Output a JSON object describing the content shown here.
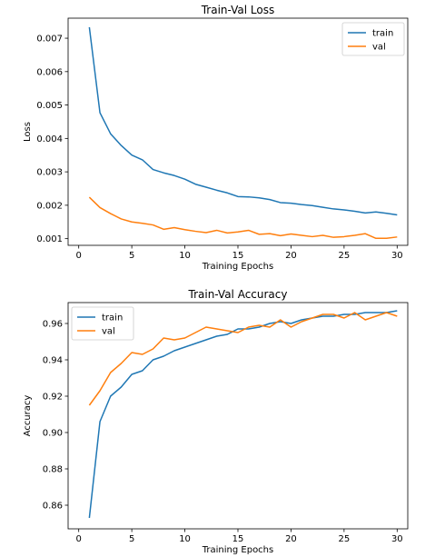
{
  "colors": {
    "train": "#1f77b4",
    "val": "#ff7f0e"
  },
  "chart_data": [
    {
      "type": "line",
      "title": "Train-Val Loss",
      "xlabel": "Training Epochs",
      "ylabel": "Loss",
      "xlim": [
        -1,
        31
      ],
      "ylim": [
        0.0008,
        0.0076
      ],
      "xticks": [
        0,
        5,
        10,
        15,
        20,
        25,
        30
      ],
      "yticks": [
        0.001,
        0.002,
        0.003,
        0.004,
        0.005,
        0.006,
        0.007
      ],
      "ytick_labels": [
        "0.001",
        "0.002",
        "0.003",
        "0.004",
        "0.005",
        "0.006",
        "0.007"
      ],
      "legend": "upper-right",
      "x": [
        1,
        2,
        3,
        4,
        5,
        6,
        7,
        8,
        9,
        10,
        11,
        12,
        13,
        14,
        15,
        16,
        17,
        18,
        19,
        20,
        21,
        22,
        23,
        24,
        25,
        26,
        27,
        28,
        29,
        30
      ],
      "series": [
        {
          "name": "train",
          "color": "#1f77b4",
          "values": [
            0.00733,
            0.00477,
            0.00414,
            0.00379,
            0.0035,
            0.00336,
            0.00307,
            0.00297,
            0.00289,
            0.00278,
            0.00263,
            0.00254,
            0.00245,
            0.00237,
            0.00226,
            0.00225,
            0.00222,
            0.00217,
            0.00208,
            0.00206,
            0.00202,
            0.00199,
            0.00194,
            0.00189,
            0.00186,
            0.00182,
            0.00177,
            0.0018,
            0.00176,
            0.00171
          ]
        },
        {
          "name": "val",
          "color": "#ff7f0e",
          "values": [
            0.00224,
            0.00193,
            0.00175,
            0.00159,
            0.0015,
            0.00146,
            0.00141,
            0.00128,
            0.00133,
            0.00127,
            0.00122,
            0.00118,
            0.00125,
            0.00117,
            0.0012,
            0.00125,
            0.00113,
            0.00115,
            0.00109,
            0.00114,
            0.0011,
            0.00106,
            0.0011,
            0.00104,
            0.00106,
            0.0011,
            0.00115,
            0.00101,
            0.00101,
            0.00105
          ]
        }
      ]
    },
    {
      "type": "line",
      "title": "Train-Val Accuracy",
      "xlabel": "Training Epochs",
      "ylabel": "Accuracy",
      "xlim": [
        -1,
        31
      ],
      "ylim": [
        0.847,
        0.9715
      ],
      "xticks": [
        0,
        5,
        10,
        15,
        20,
        25,
        30
      ],
      "yticks": [
        0.86,
        0.88,
        0.9,
        0.92,
        0.94,
        0.96
      ],
      "ytick_labels": [
        "0.86",
        "0.88",
        "0.90",
        "0.92",
        "0.94",
        "0.96"
      ],
      "legend": "upper-left",
      "x": [
        1,
        2,
        3,
        4,
        5,
        6,
        7,
        8,
        9,
        10,
        11,
        12,
        13,
        14,
        15,
        16,
        17,
        18,
        19,
        20,
        21,
        22,
        23,
        24,
        25,
        26,
        27,
        28,
        29,
        30
      ],
      "series": [
        {
          "name": "train",
          "color": "#1f77b4",
          "values": [
            0.853,
            0.906,
            0.92,
            0.925,
            0.932,
            0.934,
            0.94,
            0.942,
            0.945,
            0.947,
            0.949,
            0.951,
            0.953,
            0.954,
            0.957,
            0.957,
            0.958,
            0.96,
            0.961,
            0.96,
            0.962,
            0.963,
            0.964,
            0.964,
            0.965,
            0.965,
            0.966,
            0.966,
            0.966,
            0.967
          ]
        },
        {
          "name": "val",
          "color": "#ff7f0e",
          "values": [
            0.915,
            0.923,
            0.933,
            0.938,
            0.944,
            0.943,
            0.946,
            0.952,
            0.951,
            0.952,
            0.955,
            0.958,
            0.957,
            0.956,
            0.955,
            0.958,
            0.959,
            0.958,
            0.962,
            0.958,
            0.961,
            0.963,
            0.965,
            0.965,
            0.963,
            0.966,
            0.962,
            0.964,
            0.966,
            0.964
          ]
        }
      ]
    }
  ]
}
